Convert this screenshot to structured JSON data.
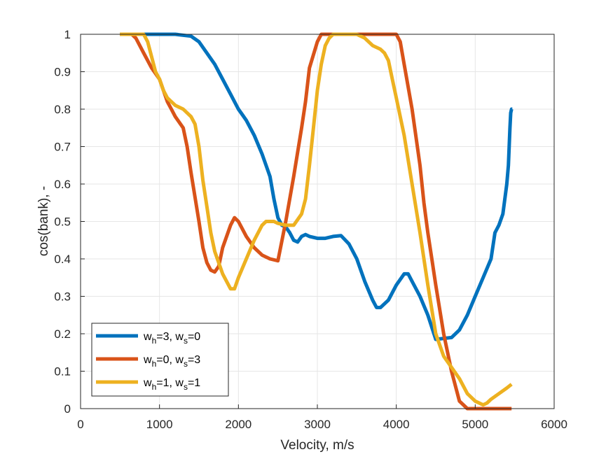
{
  "chart_data": {
    "type": "line",
    "xlabel": "Velocity, m/s",
    "ylabel": "cos(bank), -",
    "xlim": [
      0,
      6000
    ],
    "ylim": [
      0,
      1
    ],
    "xticks": [
      "0",
      "1000",
      "2000",
      "3000",
      "4000",
      "5000",
      "6000"
    ],
    "yticks": [
      "0",
      "0.1",
      "0.2",
      "0.3",
      "0.4",
      "0.5",
      "0.6",
      "0.7",
      "0.8",
      "0.9",
      "1"
    ],
    "grid": true,
    "legend_position": "bottom-left",
    "series": [
      {
        "name_main": "w",
        "sub1": "h",
        "val1": "=3, w",
        "sub2": "s",
        "val2": "=0",
        "color": "#0072BD",
        "points": [
          [
            500,
            1
          ],
          [
            800,
            1
          ],
          [
            1200,
            1
          ],
          [
            1400,
            0.995
          ],
          [
            1500,
            0.98
          ],
          [
            1600,
            0.95
          ],
          [
            1700,
            0.92
          ],
          [
            1800,
            0.88
          ],
          [
            1900,
            0.84
          ],
          [
            2000,
            0.8
          ],
          [
            2050,
            0.785
          ],
          [
            2100,
            0.77
          ],
          [
            2200,
            0.73
          ],
          [
            2300,
            0.68
          ],
          [
            2400,
            0.62
          ],
          [
            2450,
            0.56
          ],
          [
            2500,
            0.51
          ],
          [
            2550,
            0.49
          ],
          [
            2600,
            0.485
          ],
          [
            2650,
            0.47
          ],
          [
            2700,
            0.45
          ],
          [
            2750,
            0.445
          ],
          [
            2800,
            0.46
          ],
          [
            2850,
            0.465
          ],
          [
            2900,
            0.46
          ],
          [
            3000,
            0.455
          ],
          [
            3100,
            0.455
          ],
          [
            3200,
            0.46
          ],
          [
            3300,
            0.462
          ],
          [
            3400,
            0.44
          ],
          [
            3500,
            0.4
          ],
          [
            3600,
            0.34
          ],
          [
            3700,
            0.29
          ],
          [
            3750,
            0.27
          ],
          [
            3800,
            0.27
          ],
          [
            3900,
            0.29
          ],
          [
            4000,
            0.33
          ],
          [
            4100,
            0.36
          ],
          [
            4150,
            0.36
          ],
          [
            4200,
            0.34
          ],
          [
            4300,
            0.3
          ],
          [
            4400,
            0.25
          ],
          [
            4500,
            0.185
          ],
          [
            4700,
            0.19
          ],
          [
            4800,
            0.21
          ],
          [
            4900,
            0.25
          ],
          [
            5000,
            0.3
          ],
          [
            5100,
            0.35
          ],
          [
            5200,
            0.4
          ],
          [
            5250,
            0.47
          ],
          [
            5300,
            0.49
          ],
          [
            5350,
            0.52
          ],
          [
            5400,
            0.6
          ],
          [
            5420,
            0.65
          ],
          [
            5430,
            0.7
          ],
          [
            5440,
            0.75
          ],
          [
            5450,
            0.79
          ],
          [
            5460,
            0.8
          ],
          [
            5470,
            0.8
          ]
        ]
      },
      {
        "name_main": "w",
        "sub1": "h",
        "val1": "=0, w",
        "sub2": "s",
        "val2": "=3",
        "color": "#D95319",
        "points": [
          [
            500,
            1
          ],
          [
            650,
            1
          ],
          [
            700,
            0.99
          ],
          [
            750,
            0.97
          ],
          [
            800,
            0.95
          ],
          [
            900,
            0.91
          ],
          [
            1000,
            0.88
          ],
          [
            1050,
            0.85
          ],
          [
            1100,
            0.82
          ],
          [
            1150,
            0.8
          ],
          [
            1200,
            0.78
          ],
          [
            1300,
            0.75
          ],
          [
            1350,
            0.7
          ],
          [
            1400,
            0.63
          ],
          [
            1500,
            0.5
          ],
          [
            1550,
            0.43
          ],
          [
            1600,
            0.39
          ],
          [
            1650,
            0.37
          ],
          [
            1700,
            0.365
          ],
          [
            1750,
            0.38
          ],
          [
            1800,
            0.43
          ],
          [
            1900,
            0.49
          ],
          [
            1950,
            0.51
          ],
          [
            2000,
            0.5
          ],
          [
            2100,
            0.46
          ],
          [
            2200,
            0.43
          ],
          [
            2300,
            0.41
          ],
          [
            2400,
            0.4
          ],
          [
            2500,
            0.395
          ],
          [
            2600,
            0.5
          ],
          [
            2700,
            0.62
          ],
          [
            2800,
            0.75
          ],
          [
            2850,
            0.82
          ],
          [
            2900,
            0.91
          ],
          [
            3000,
            0.98
          ],
          [
            3050,
            1
          ],
          [
            3100,
            1
          ],
          [
            4000,
            1
          ],
          [
            4050,
            0.98
          ],
          [
            4100,
            0.92
          ],
          [
            4200,
            0.8
          ],
          [
            4300,
            0.65
          ],
          [
            4350,
            0.55
          ],
          [
            4400,
            0.47
          ],
          [
            4450,
            0.4
          ],
          [
            4500,
            0.33
          ],
          [
            4600,
            0.2
          ],
          [
            4700,
            0.1
          ],
          [
            4800,
            0.02
          ],
          [
            4900,
            0
          ],
          [
            5000,
            0
          ],
          [
            5460,
            0
          ]
        ]
      },
      {
        "name_main": "w",
        "sub1": "h",
        "val1": "=1, w",
        "sub2": "s",
        "val2": "=1",
        "color": "#EDB120",
        "points": [
          [
            500,
            1
          ],
          [
            800,
            1
          ],
          [
            850,
            0.98
          ],
          [
            900,
            0.94
          ],
          [
            950,
            0.9
          ],
          [
            1000,
            0.88
          ],
          [
            1050,
            0.85
          ],
          [
            1100,
            0.83
          ],
          [
            1150,
            0.82
          ],
          [
            1200,
            0.81
          ],
          [
            1300,
            0.8
          ],
          [
            1400,
            0.78
          ],
          [
            1450,
            0.76
          ],
          [
            1500,
            0.7
          ],
          [
            1550,
            0.61
          ],
          [
            1600,
            0.54
          ],
          [
            1650,
            0.47
          ],
          [
            1700,
            0.42
          ],
          [
            1800,
            0.36
          ],
          [
            1900,
            0.32
          ],
          [
            1950,
            0.32
          ],
          [
            2000,
            0.35
          ],
          [
            2100,
            0.4
          ],
          [
            2200,
            0.45
          ],
          [
            2300,
            0.49
          ],
          [
            2350,
            0.5
          ],
          [
            2450,
            0.5
          ],
          [
            2500,
            0.495
          ],
          [
            2600,
            0.49
          ],
          [
            2700,
            0.49
          ],
          [
            2800,
            0.52
          ],
          [
            2850,
            0.56
          ],
          [
            2900,
            0.65
          ],
          [
            2950,
            0.75
          ],
          [
            3000,
            0.85
          ],
          [
            3050,
            0.92
          ],
          [
            3100,
            0.97
          ],
          [
            3150,
            0.99
          ],
          [
            3200,
            1
          ],
          [
            3500,
            1
          ],
          [
            3600,
            0.99
          ],
          [
            3700,
            0.97
          ],
          [
            3800,
            0.96
          ],
          [
            3850,
            0.95
          ],
          [
            3900,
            0.93
          ],
          [
            3950,
            0.88
          ],
          [
            4000,
            0.83
          ],
          [
            4100,
            0.73
          ],
          [
            4200,
            0.6
          ],
          [
            4300,
            0.47
          ],
          [
            4400,
            0.33
          ],
          [
            4500,
            0.2
          ],
          [
            4600,
            0.14
          ],
          [
            4700,
            0.11
          ],
          [
            4800,
            0.08
          ],
          [
            4900,
            0.04
          ],
          [
            5000,
            0.02
          ],
          [
            5100,
            0.01
          ],
          [
            5150,
            0.015
          ],
          [
            5200,
            0.025
          ],
          [
            5300,
            0.04
          ],
          [
            5400,
            0.055
          ],
          [
            5460,
            0.065
          ]
        ]
      }
    ]
  }
}
